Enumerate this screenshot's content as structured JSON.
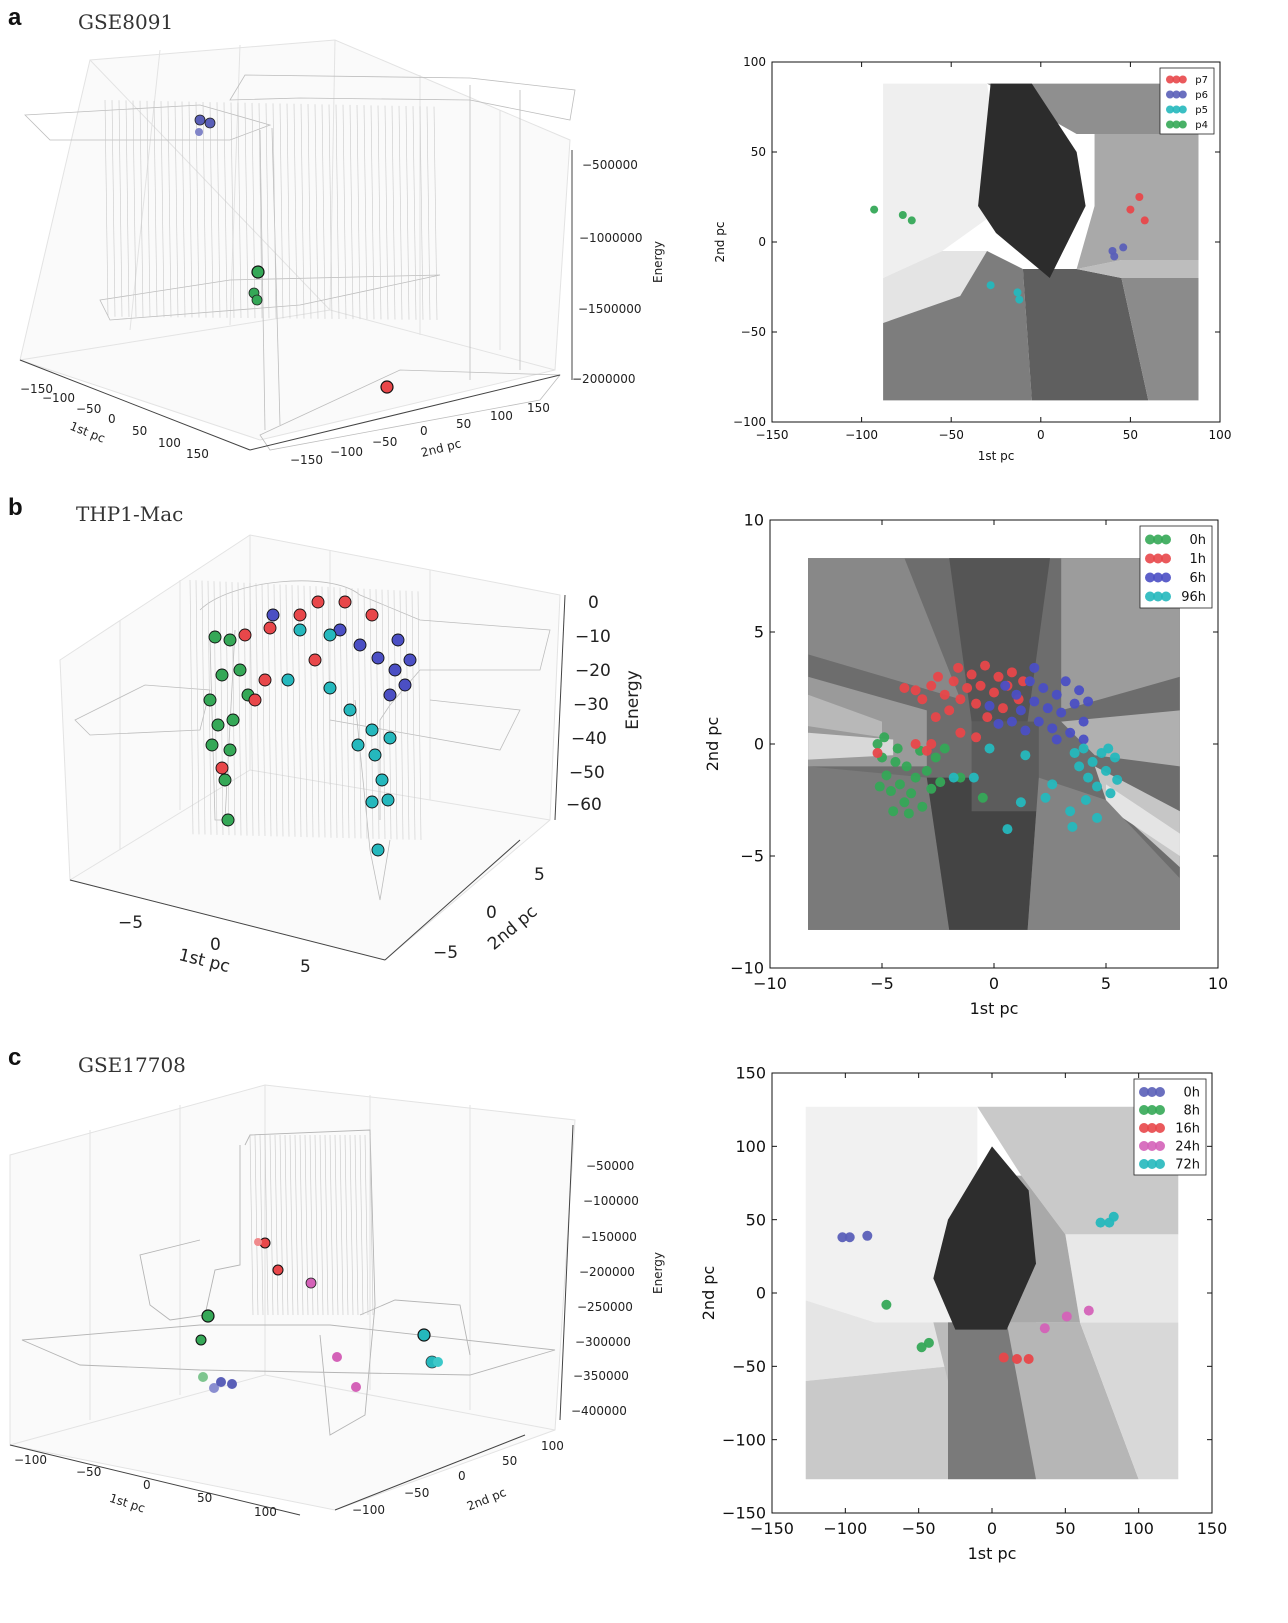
{
  "panels": [
    {
      "letter": "a",
      "dataset": "GSE8091",
      "surface3d": {
        "zlabel": "Energy",
        "xlabel": "1st pc",
        "ylabel": "2nd pc",
        "ztick_labels": [
          "−500000",
          "−1000000",
          "−1500000",
          "−2000000"
        ],
        "xtick_labels": [
          "−150",
          "−100",
          "−50",
          "0",
          "50",
          "100",
          "150"
        ],
        "ytick_labels": [
          "−150",
          "−100",
          "−50",
          "0",
          "50",
          "100",
          "150"
        ],
        "colors": {
          "p7": "#e8474a",
          "p6": "#5a5fb8",
          "p5": "#25b8bd",
          "p4": "#35a857"
        }
      },
      "map2d": {
        "xlabel": "1st pc",
        "ylabel": "2nd pc",
        "xlim": [
          -150,
          100
        ],
        "ylim": [
          -100,
          100
        ],
        "xticks": [
          -150,
          -100,
          -50,
          0,
          50,
          100
        ],
        "yticks": [
          -100,
          -50,
          0,
          50,
          100
        ],
        "legend": [
          "p7",
          "p6",
          "p5",
          "p4"
        ]
      }
    },
    {
      "letter": "b",
      "dataset": "THP1-Mac",
      "surface3d": {
        "zlabel": "Energy",
        "xlabel": "1st pc",
        "ylabel": "2nd pc",
        "ztick_labels": [
          "0",
          "−10",
          "−20",
          "−30",
          "−40",
          "−50",
          "−60"
        ],
        "xtick_labels": [
          "−5",
          "0",
          "5"
        ],
        "ytick_labels": [
          "−5",
          "0",
          "5"
        ],
        "colors": {
          "0h": "#35a857",
          "1h": "#e8474a",
          "6h": "#4b4fc4",
          "96h": "#25b8bd"
        }
      },
      "map2d": {
        "xlabel": "1st pc",
        "ylabel": "2nd pc",
        "xlim": [
          -10,
          10
        ],
        "ylim": [
          -10,
          10
        ],
        "xticks": [
          -10,
          -5,
          0,
          5,
          10
        ],
        "yticks": [
          -10,
          -5,
          0,
          5,
          10
        ],
        "legend": [
          "0h",
          "1h",
          "6h",
          "96h"
        ]
      }
    },
    {
      "letter": "c",
      "dataset": "GSE17708",
      "surface3d": {
        "zlabel": "Energy",
        "xlabel": "1st pc",
        "ylabel": "2nd pc",
        "ztick_labels": [
          "−50000",
          "−100000",
          "−150000",
          "−200000",
          "−250000",
          "−300000",
          "−350000",
          "−400000"
        ],
        "xtick_labels": [
          "−100",
          "−50",
          "0",
          "50",
          "100"
        ],
        "ytick_labels": [
          "−100",
          "−50",
          "0",
          "50",
          "100"
        ],
        "colors": {
          "0h": "#5a5fb8",
          "8h": "#35a857",
          "16h": "#e8474a",
          "24h": "#d462b8",
          "72h": "#25b8bd"
        }
      },
      "map2d": {
        "xlabel": "1st pc",
        "ylabel": "2nd pc",
        "xlim": [
          -150,
          150
        ],
        "ylim": [
          -150,
          150
        ],
        "xticks": [
          -150,
          -100,
          -50,
          0,
          50,
          100,
          150
        ],
        "yticks": [
          -150,
          -100,
          -50,
          0,
          50,
          100,
          150
        ],
        "legend": [
          "0h",
          "8h",
          "16h",
          "24h",
          "72h"
        ]
      }
    }
  ],
  "chart_data": [
    {
      "type": "scatter",
      "title": "GSE8091",
      "xlabel": "1st pc",
      "ylabel": "2nd pc",
      "xlim": [
        -150,
        100
      ],
      "ylim": [
        -100,
        100
      ],
      "legend_position": "top-right",
      "grid": false,
      "series": [
        {
          "name": "p7",
          "color": "#e8474a",
          "points": [
            [
              55,
              25
            ],
            [
              50,
              18
            ],
            [
              58,
              12
            ]
          ]
        },
        {
          "name": "p6",
          "color": "#5a5fb8",
          "points": [
            [
              46,
              -3
            ],
            [
              40,
              -5
            ],
            [
              41,
              -8
            ]
          ]
        },
        {
          "name": "p5",
          "color": "#25b8bd",
          "points": [
            [
              -28,
              -24
            ],
            [
              -13,
              -28
            ],
            [
              -12,
              -32
            ]
          ]
        },
        {
          "name": "p4",
          "color": "#35a857",
          "points": [
            [
              -93,
              18
            ],
            [
              -77,
              15
            ],
            [
              -72,
              12
            ]
          ]
        }
      ]
    },
    {
      "type": "scatter",
      "title": "THP1-Mac",
      "xlabel": "1st pc",
      "ylabel": "2nd pc",
      "xlim": [
        -10,
        10
      ],
      "ylim": [
        -10,
        10
      ],
      "legend_position": "top-right",
      "grid": false,
      "series": [
        {
          "name": "0h",
          "color": "#35a857",
          "points": [
            [
              -5.2,
              0.0
            ],
            [
              -5.0,
              -0.6
            ],
            [
              -4.8,
              -1.4
            ],
            [
              -4.6,
              -2.1
            ],
            [
              -4.4,
              -0.8
            ],
            [
              -4.2,
              -1.8
            ],
            [
              -4.0,
              -2.6
            ],
            [
              -3.9,
              -1.0
            ],
            [
              -3.7,
              -2.2
            ],
            [
              -3.5,
              -1.5
            ],
            [
              -3.3,
              -0.3
            ],
            [
              -3.2,
              -2.8
            ],
            [
              -3.0,
              -1.2
            ],
            [
              -2.8,
              -2.0
            ],
            [
              -2.6,
              -0.6
            ],
            [
              -2.4,
              -1.7
            ],
            [
              -4.9,
              0.3
            ],
            [
              -4.5,
              -3.0
            ],
            [
              -3.8,
              -3.1
            ],
            [
              -5.1,
              -1.9
            ],
            [
              -0.5,
              -2.4
            ],
            [
              -1.5,
              -1.5
            ],
            [
              -2.2,
              -0.2
            ],
            [
              -4.3,
              -0.2
            ]
          ]
        },
        {
          "name": "1h",
          "color": "#e8474a",
          "points": [
            [
              -4.0,
              2.5
            ],
            [
              -3.5,
              2.4
            ],
            [
              -3.2,
              2.0
            ],
            [
              -2.8,
              2.6
            ],
            [
              -2.5,
              3.0
            ],
            [
              -2.2,
              2.2
            ],
            [
              -2.0,
              1.5
            ],
            [
              -1.8,
              2.8
            ],
            [
              -1.6,
              3.4
            ],
            [
              -1.5,
              2.0
            ],
            [
              -1.2,
              2.5
            ],
            [
              -1.0,
              3.1
            ],
            [
              -0.8,
              1.8
            ],
            [
              -0.6,
              2.6
            ],
            [
              -0.4,
              3.5
            ],
            [
              -0.3,
              1.2
            ],
            [
              0.0,
              2.3
            ],
            [
              0.2,
              3.0
            ],
            [
              0.4,
              1.6
            ],
            [
              0.6,
              2.6
            ],
            [
              0.8,
              3.2
            ],
            [
              1.1,
              2.0
            ],
            [
              1.3,
              2.8
            ],
            [
              -3.5,
              0.0
            ],
            [
              -2.8,
              0.0
            ],
            [
              -1.5,
              0.5
            ],
            [
              -0.8,
              0.3
            ],
            [
              -2.6,
              1.2
            ],
            [
              -3.0,
              -0.3
            ],
            [
              -5.2,
              -0.4
            ]
          ]
        },
        {
          "name": "6h",
          "color": "#4b4fc4",
          "points": [
            [
              0.8,
              1.0
            ],
            [
              1.0,
              2.2
            ],
            [
              1.2,
              1.5
            ],
            [
              1.4,
              0.6
            ],
            [
              1.6,
              2.8
            ],
            [
              1.8,
              1.9
            ],
            [
              2.0,
              1.0
            ],
            [
              2.2,
              2.5
            ],
            [
              2.4,
              1.6
            ],
            [
              2.6,
              0.7
            ],
            [
              2.8,
              2.2
            ],
            [
              3.0,
              1.4
            ],
            [
              3.2,
              2.8
            ],
            [
              3.4,
              0.5
            ],
            [
              3.6,
              1.8
            ],
            [
              3.8,
              2.4
            ],
            [
              4.0,
              1.0
            ],
            [
              4.2,
              1.9
            ],
            [
              0.2,
              0.9
            ],
            [
              -0.2,
              1.7
            ],
            [
              0.5,
              2.6
            ],
            [
              1.8,
              3.4
            ],
            [
              2.8,
              0.2
            ],
            [
              4.0,
              0.2
            ]
          ]
        },
        {
          "name": "96h",
          "color": "#25b8bd",
          "points": [
            [
              3.6,
              -0.4
            ],
            [
              3.8,
              -1.0
            ],
            [
              4.0,
              -0.2
            ],
            [
              4.2,
              -1.5
            ],
            [
              4.4,
              -0.8
            ],
            [
              4.6,
              -1.9
            ],
            [
              4.8,
              -0.4
            ],
            [
              5.0,
              -1.2
            ],
            [
              5.2,
              -2.2
            ],
            [
              5.4,
              -0.6
            ],
            [
              5.5,
              -1.6
            ],
            [
              4.1,
              -2.5
            ],
            [
              4.6,
              -3.3
            ],
            [
              3.4,
              -3.0
            ],
            [
              2.6,
              -1.8
            ],
            [
              2.3,
              -2.4
            ],
            [
              1.2,
              -2.6
            ],
            [
              0.6,
              -3.8
            ],
            [
              -0.9,
              -1.5
            ],
            [
              -1.8,
              -1.5
            ],
            [
              -0.2,
              -0.2
            ],
            [
              1.4,
              -0.5
            ],
            [
              3.5,
              -3.7
            ],
            [
              5.1,
              -0.2
            ]
          ]
        }
      ]
    },
    {
      "type": "scatter",
      "title": "GSE17708",
      "xlabel": "1st pc",
      "ylabel": "2nd pc",
      "xlim": [
        -150,
        150
      ],
      "ylim": [
        -150,
        150
      ],
      "legend_position": "top-right",
      "grid": false,
      "series": [
        {
          "name": "0h",
          "color": "#5a5fb8",
          "points": [
            [
              -102,
              38
            ],
            [
              -97,
              38
            ],
            [
              -85,
              39
            ]
          ]
        },
        {
          "name": "8h",
          "color": "#35a857",
          "points": [
            [
              -72,
              -8
            ],
            [
              -48,
              -37
            ],
            [
              -43,
              -34
            ]
          ]
        },
        {
          "name": "16h",
          "color": "#e8474a",
          "points": [
            [
              8,
              -44
            ],
            [
              17,
              -45
            ],
            [
              25,
              -45
            ]
          ]
        },
        {
          "name": "24h",
          "color": "#d462b8",
          "points": [
            [
              36,
              -24
            ],
            [
              51,
              -16
            ],
            [
              66,
              -12
            ]
          ]
        },
        {
          "name": "72h",
          "color": "#25b8bd",
          "points": [
            [
              74,
              48
            ],
            [
              80,
              48
            ],
            [
              83,
              52
            ]
          ]
        }
      ]
    }
  ]
}
